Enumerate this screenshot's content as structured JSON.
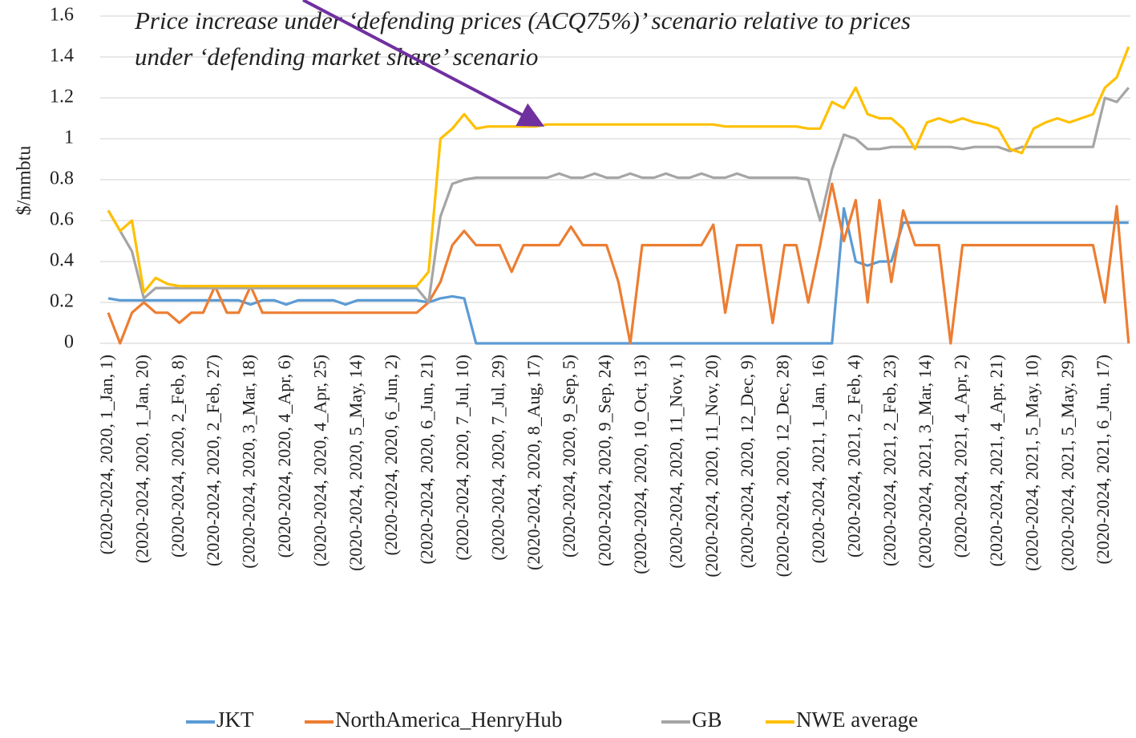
{
  "chart_data": {
    "type": "line",
    "ylabel": "$/mmbtu",
    "annotation": [
      "Price increase under ‘defending prices (ACQ75%)’ scenario relative to prices",
      "under ‘defending market share’ scenario"
    ],
    "ylim": [
      0,
      1.6
    ],
    "yticks": [
      0,
      0.2,
      0.4,
      0.6,
      0.8,
      1,
      1.2,
      1.4,
      1.6
    ],
    "grid": true,
    "legend": "bottom",
    "categories": [
      "(2020-2024, 2020, 1_Jan, 1)",
      null,
      null,
      "(2020-2024, 2020, 1_Jan, 20)",
      null,
      null,
      "(2020-2024, 2020, 2_Feb, 8)",
      null,
      null,
      "(2020-2024, 2020, 2_Feb, 27)",
      null,
      null,
      "(2020-2024, 2020, 3_Mar, 18)",
      null,
      null,
      "(2020-2024, 2020, 4_Apr, 6)",
      null,
      null,
      "(2020-2024, 2020, 4_Apr, 25)",
      null,
      null,
      "(2020-2024, 2020, 5_May, 14)",
      null,
      null,
      "(2020-2024, 2020, 6_Jun, 2)",
      null,
      null,
      "(2020-2024, 2020, 6_Jun, 21)",
      null,
      null,
      "(2020-2024, 2020, 7_Jul, 10)",
      null,
      null,
      "(2020-2024, 2020, 7_Jul, 29)",
      null,
      null,
      "(2020-2024, 2020, 8_Aug, 17)",
      null,
      null,
      "(2020-2024, 2020, 9_Sep, 5)",
      null,
      null,
      "(2020-2024, 2020, 9_Sep, 24)",
      null,
      null,
      "(2020-2024, 2020, 10_Oct, 13)",
      null,
      null,
      "(2020-2024, 2020, 11_Nov, 1)",
      null,
      null,
      "(2020-2024, 2020, 11_Nov, 20)",
      null,
      null,
      "(2020-2024, 2020, 12_Dec, 9)",
      null,
      null,
      "(2020-2024, 2020, 12_Dec, 28)",
      null,
      null,
      "(2020-2024, 2021, 1_Jan, 16)",
      null,
      null,
      "(2020-2024, 2021, 2_Feb, 4)",
      null,
      null,
      "(2020-2024, 2021, 2_Feb, 23)",
      null,
      null,
      "(2020-2024, 2021, 3_Mar, 14)",
      null,
      null,
      "(2020-2024, 2021, 4_Apr, 2)",
      null,
      null,
      "(2020-2024, 2021, 4_Apr, 21)",
      null,
      null,
      "(2020-2024, 2021, 5_May, 10)",
      null,
      null,
      "(2020-2024, 2021, 5_May, 29)",
      null,
      null,
      "(2020-2024, 2021, 6_Jun, 17)",
      null,
      null
    ],
    "series": [
      {
        "name": "JKT",
        "color": "#5b9bd5",
        "values": [
          0.22,
          0.21,
          0.21,
          0.21,
          0.21,
          0.21,
          0.21,
          0.21,
          0.21,
          0.21,
          0.21,
          0.21,
          0.19,
          0.21,
          0.21,
          0.19,
          0.21,
          0.21,
          0.21,
          0.21,
          0.19,
          0.21,
          0.21,
          0.21,
          0.21,
          0.21,
          0.21,
          0.2,
          0.22,
          0.23,
          0.22,
          0,
          0,
          0,
          0,
          0,
          0,
          0,
          0,
          0,
          0,
          0,
          0,
          0,
          0,
          0,
          0,
          0,
          0,
          0,
          0,
          0,
          0,
          0,
          0,
          0,
          0,
          0,
          0,
          0,
          0,
          0,
          0.66,
          0.4,
          0.38,
          0.4,
          0.4,
          0.59,
          0.59,
          0.59,
          0.59,
          0.59,
          0.59,
          0.59,
          0.59,
          0.59,
          0.59,
          0.59,
          0.59,
          0.59,
          0.59,
          0.59,
          0.59,
          0.59,
          0.59,
          0.59,
          0.59
        ]
      },
      {
        "name": "NorthAmerica_HenryHub",
        "color": "#ed7d31",
        "values": [
          0.15,
          0,
          0.15,
          0.2,
          0.15,
          0.15,
          0.1,
          0.15,
          0.15,
          0.28,
          0.15,
          0.15,
          0.28,
          0.15,
          0.15,
          0.15,
          0.15,
          0.15,
          0.15,
          0.15,
          0.15,
          0.15,
          0.15,
          0.15,
          0.15,
          0.15,
          0.15,
          0.2,
          0.3,
          0.48,
          0.55,
          0.48,
          0.48,
          0.48,
          0.35,
          0.48,
          0.48,
          0.48,
          0.48,
          0.57,
          0.48,
          0.48,
          0.48,
          0.3,
          0,
          0.48,
          0.48,
          0.48,
          0.48,
          0.48,
          0.48,
          0.58,
          0.15,
          0.48,
          0.48,
          0.48,
          0.1,
          0.48,
          0.48,
          0.2,
          0.48,
          0.78,
          0.5,
          0.7,
          0.2,
          0.7,
          0.3,
          0.65,
          0.48,
          0.48,
          0.48,
          0,
          0.48,
          0.48,
          0.48,
          0.48,
          0.48,
          0.48,
          0.48,
          0.48,
          0.48,
          0.48,
          0.48,
          0.48,
          0.2,
          0.67,
          0
        ]
      },
      {
        "name": "GB",
        "color": "#a5a5a5",
        "values": [
          0.65,
          0.55,
          0.45,
          0.22,
          0.27,
          0.27,
          0.27,
          0.27,
          0.27,
          0.27,
          0.27,
          0.27,
          0.27,
          0.27,
          0.27,
          0.27,
          0.27,
          0.27,
          0.27,
          0.27,
          0.27,
          0.27,
          0.27,
          0.27,
          0.27,
          0.27,
          0.27,
          0.2,
          0.62,
          0.78,
          0.8,
          0.81,
          0.81,
          0.81,
          0.81,
          0.81,
          0.81,
          0.81,
          0.83,
          0.81,
          0.81,
          0.83,
          0.81,
          0.81,
          0.83,
          0.81,
          0.81,
          0.83,
          0.81,
          0.81,
          0.83,
          0.81,
          0.81,
          0.83,
          0.81,
          0.81,
          0.81,
          0.81,
          0.81,
          0.8,
          0.6,
          0.85,
          1.02,
          1.0,
          0.95,
          0.95,
          0.96,
          0.96,
          0.96,
          0.96,
          0.96,
          0.96,
          0.95,
          0.96,
          0.96,
          0.96,
          0.94,
          0.96,
          0.96,
          0.96,
          0.96,
          0.96,
          0.96,
          0.96,
          1.2,
          1.18,
          1.25
        ]
      },
      {
        "name": "NWE average",
        "color": "#ffc000",
        "values": [
          0.65,
          0.55,
          0.6,
          0.25,
          0.32,
          0.29,
          0.28,
          0.28,
          0.28,
          0.28,
          0.28,
          0.28,
          0.28,
          0.28,
          0.28,
          0.28,
          0.28,
          0.28,
          0.28,
          0.28,
          0.28,
          0.28,
          0.28,
          0.28,
          0.28,
          0.28,
          0.28,
          0.35,
          1.0,
          1.05,
          1.12,
          1.05,
          1.06,
          1.06,
          1.06,
          1.06,
          1.06,
          1.07,
          1.07,
          1.07,
          1.07,
          1.07,
          1.07,
          1.07,
          1.07,
          1.07,
          1.07,
          1.07,
          1.07,
          1.07,
          1.07,
          1.07,
          1.06,
          1.06,
          1.06,
          1.06,
          1.06,
          1.06,
          1.06,
          1.05,
          1.05,
          1.18,
          1.15,
          1.25,
          1.12,
          1.1,
          1.1,
          1.05,
          0.95,
          1.08,
          1.1,
          1.08,
          1.1,
          1.08,
          1.07,
          1.05,
          0.95,
          0.93,
          1.05,
          1.08,
          1.1,
          1.08,
          1.1,
          1.12,
          1.25,
          1.3,
          1.45
        ]
      }
    ]
  }
}
